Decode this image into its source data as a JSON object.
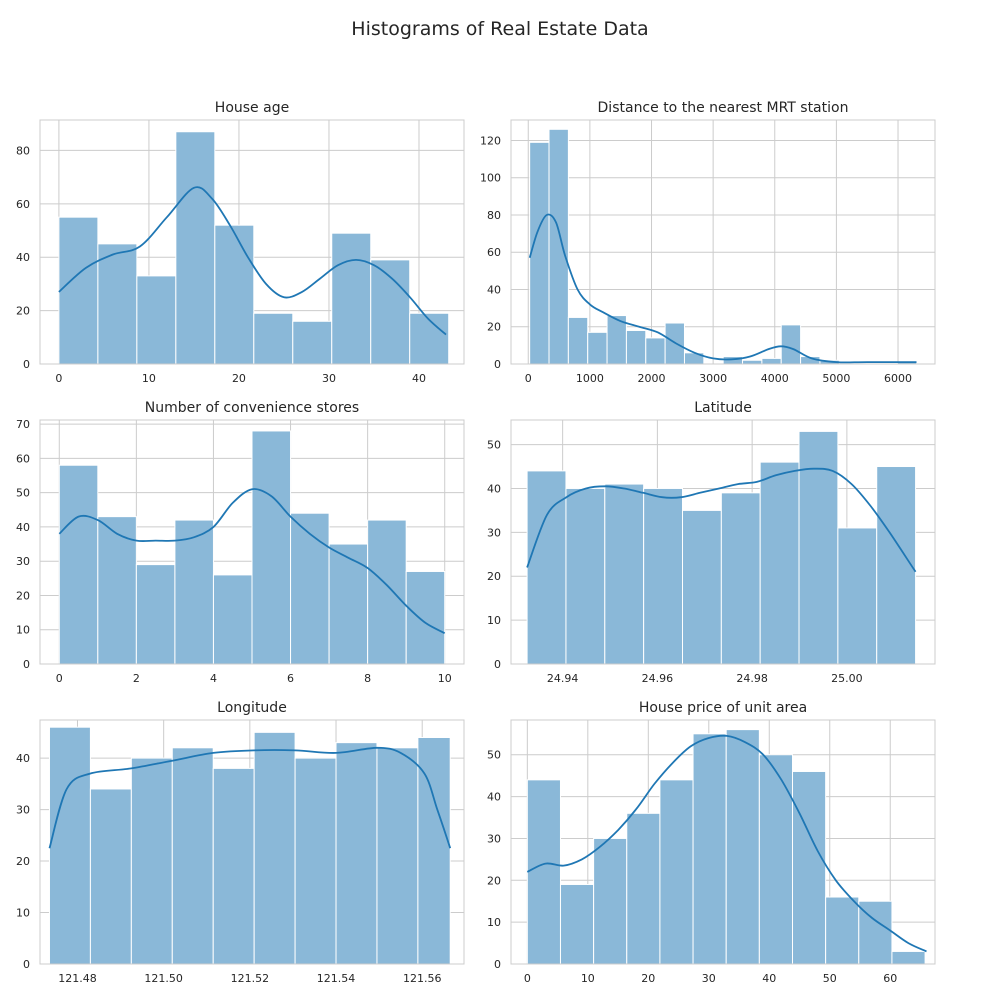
{
  "figure": {
    "title": "Histograms of Real Estate Data",
    "bar_color": "#8ab8d8",
    "bar_edge": "#ffffff",
    "kde_color": "#1f77b4",
    "grid_color": "#cccccc",
    "frame_color": "#cccccc",
    "background": "#ffffff"
  },
  "chart_data": [
    {
      "type": "bar",
      "subtype": "histogram_with_kde",
      "title": "House age",
      "xlabel": "",
      "ylabel": "",
      "xlim": [
        -2.1,
        45
      ],
      "ylim": [
        0,
        91.4
      ],
      "xticks": [
        0,
        10,
        20,
        30,
        40
      ],
      "yticks": [
        0,
        20,
        40,
        60,
        80
      ],
      "bin_edges": [
        0,
        4.33,
        8.66,
        12.99,
        17.32,
        21.65,
        25.98,
        30.31,
        34.64,
        38.97,
        43.3
      ],
      "counts": [
        55,
        45,
        33,
        87,
        52,
        19,
        16,
        49,
        39,
        19
      ],
      "kde": [
        [
          0,
          27
        ],
        [
          3,
          36
        ],
        [
          6,
          41
        ],
        [
          9,
          44
        ],
        [
          12,
          55
        ],
        [
          15,
          66
        ],
        [
          17,
          62
        ],
        [
          19,
          52
        ],
        [
          21,
          40
        ],
        [
          23,
          30
        ],
        [
          25,
          25
        ],
        [
          27,
          27
        ],
        [
          29,
          32
        ],
        [
          31,
          37
        ],
        [
          33,
          39
        ],
        [
          35,
          37
        ],
        [
          37,
          32
        ],
        [
          39,
          25
        ],
        [
          41,
          17
        ],
        [
          43,
          11
        ]
      ]
    },
    {
      "type": "bar",
      "subtype": "histogram_with_kde",
      "title": "Distance to the nearest MRT station",
      "xlabel": "",
      "ylabel": "",
      "xlim": [
        -280,
        6600
      ],
      "ylim": [
        0,
        131
      ],
      "xticks": [
        0,
        1000,
        2000,
        3000,
        4000,
        5000,
        6000
      ],
      "yticks": [
        0,
        20,
        40,
        60,
        80,
        100,
        120
      ],
      "bin_edges": [
        23,
        337,
        651,
        965,
        1279,
        1593,
        1907,
        2221,
        2535,
        2849,
        3163,
        3477,
        3791,
        4105,
        4419,
        4733,
        5047,
        5361,
        5675,
        5989,
        6303
      ],
      "counts": [
        119,
        126,
        25,
        17,
        26,
        18,
        14,
        22,
        6,
        0,
        4,
        2,
        3,
        21,
        4,
        2,
        0,
        0,
        0,
        1
      ],
      "kde": [
        [
          23,
          57
        ],
        [
          150,
          71
        ],
        [
          300,
          80
        ],
        [
          450,
          76
        ],
        [
          600,
          58
        ],
        [
          800,
          40
        ],
        [
          1000,
          32
        ],
        [
          1200,
          28
        ],
        [
          1500,
          23
        ],
        [
          1800,
          20
        ],
        [
          2100,
          17
        ],
        [
          2400,
          11
        ],
        [
          2700,
          6
        ],
        [
          3000,
          3
        ],
        [
          3300,
          2.5
        ],
        [
          3600,
          4
        ],
        [
          3900,
          8
        ],
        [
          4100,
          9.5
        ],
        [
          4300,
          8
        ],
        [
          4600,
          3
        ],
        [
          5000,
          1
        ],
        [
          5500,
          1
        ],
        [
          6300,
          1
        ]
      ]
    },
    {
      "type": "bar",
      "subtype": "histogram_with_kde",
      "title": "Number of convenience stores",
      "xlabel": "",
      "ylabel": "",
      "xlim": [
        -0.5,
        10.5
      ],
      "ylim": [
        0,
        71.2
      ],
      "xticks": [
        0,
        2,
        4,
        6,
        8,
        10
      ],
      "yticks": [
        0,
        10,
        20,
        30,
        40,
        50,
        60,
        70
      ],
      "bin_edges": [
        0,
        1,
        2,
        3,
        4,
        5,
        6,
        7,
        8,
        9,
        10
      ],
      "counts": [
        58,
        43,
        29,
        42,
        26,
        68,
        44,
        35,
        42,
        27
      ],
      "kde": [
        [
          0,
          38
        ],
        [
          0.5,
          43
        ],
        [
          1,
          42
        ],
        [
          1.5,
          38
        ],
        [
          2,
          36
        ],
        [
          2.5,
          36
        ],
        [
          3,
          36
        ],
        [
          3.5,
          37
        ],
        [
          4,
          40
        ],
        [
          4.5,
          47
        ],
        [
          5,
          51
        ],
        [
          5.5,
          49
        ],
        [
          6,
          43
        ],
        [
          6.5,
          38
        ],
        [
          7,
          34
        ],
        [
          7.5,
          31
        ],
        [
          8,
          28
        ],
        [
          8.5,
          23
        ],
        [
          9,
          17
        ],
        [
          9.5,
          12
        ],
        [
          10,
          9
        ]
      ]
    },
    {
      "type": "bar",
      "subtype": "histogram_with_kde",
      "title": "Latitude",
      "xlabel": "",
      "ylabel": "",
      "xlim": [
        24.9291,
        25.0186
      ],
      "ylim": [
        0,
        55.6
      ],
      "xticks": [
        24.94,
        24.96,
        24.98,
        25.0
      ],
      "yticks": [
        0,
        10,
        20,
        30,
        40,
        50
      ],
      "bin_edges": [
        24.9325,
        24.9407,
        24.9489,
        24.9571,
        24.9653,
        24.9735,
        24.9817,
        24.9899,
        24.9981,
        25.0063,
        25.0145
      ],
      "counts": [
        44,
        40,
        41,
        40,
        35,
        39,
        46,
        53,
        31,
        45
      ],
      "kde": [
        [
          24.9325,
          22
        ],
        [
          24.9367,
          34
        ],
        [
          24.9408,
          38
        ],
        [
          24.9449,
          40
        ],
        [
          24.949,
          40.5
        ],
        [
          24.953,
          40
        ],
        [
          24.957,
          39
        ],
        [
          24.961,
          38
        ],
        [
          24.965,
          38
        ],
        [
          24.969,
          39
        ],
        [
          24.973,
          40
        ],
        [
          24.977,
          41
        ],
        [
          24.981,
          41.5
        ],
        [
          24.985,
          43
        ],
        [
          24.989,
          44
        ],
        [
          24.993,
          44.5
        ],
        [
          24.997,
          44
        ],
        [
          25.001,
          41
        ],
        [
          25.005,
          36
        ],
        [
          25.009,
          30
        ],
        [
          25.0145,
          21
        ]
      ]
    },
    {
      "type": "bar",
      "subtype": "histogram_with_kde",
      "title": "Longitude",
      "xlabel": "",
      "ylabel": "",
      "xlim": [
        121.4713,
        121.5697
      ],
      "ylim": [
        0,
        47.4
      ],
      "xticks": [
        121.48,
        121.5,
        121.52,
        121.54,
        121.56
      ],
      "yticks": [
        0,
        10,
        20,
        30,
        40
      ],
      "bin_edges": [
        121.4735,
        121.483,
        121.4925,
        121.502,
        121.5115,
        121.521,
        121.5305,
        121.54,
        121.5495,
        121.559,
        121.5665
      ],
      "counts": [
        46,
        34,
        40,
        42,
        38,
        45,
        40,
        43,
        42,
        44
      ],
      "kde": [
        [
          121.4735,
          22.5
        ],
        [
          121.4775,
          34
        ],
        [
          121.483,
          37
        ],
        [
          121.4925,
          38
        ],
        [
          121.502,
          39.5
        ],
        [
          121.5115,
          41
        ],
        [
          121.521,
          41.5
        ],
        [
          121.5305,
          41.5
        ],
        [
          121.54,
          41
        ],
        [
          121.5495,
          42
        ],
        [
          121.555,
          41
        ],
        [
          121.5605,
          37
        ],
        [
          121.5635,
          30
        ],
        [
          121.5665,
          22.5
        ]
      ]
    },
    {
      "type": "bar",
      "subtype": "histogram_with_kde",
      "title": "House price of unit area",
      "xlabel": "",
      "ylabel": "",
      "xlim": [
        -2.7,
        67.4
      ],
      "ylim": [
        0,
        58.3
      ],
      "xticks": [
        0,
        10,
        20,
        30,
        40,
        50,
        60
      ],
      "yticks": [
        0,
        10,
        20,
        30,
        40,
        50
      ],
      "bin_edges": [
        0,
        5.48,
        10.96,
        16.44,
        21.92,
        27.4,
        32.88,
        38.36,
        43.84,
        49.32,
        54.8,
        60.28,
        65.76
      ],
      "counts": [
        44,
        19,
        30,
        36,
        44,
        55,
        56,
        50,
        46,
        16,
        15,
        3
      ],
      "kde": [
        [
          0,
          22
        ],
        [
          3,
          24
        ],
        [
          6,
          23.5
        ],
        [
          9,
          25
        ],
        [
          12,
          28
        ],
        [
          15,
          32
        ],
        [
          18,
          37
        ],
        [
          21,
          43
        ],
        [
          24,
          48
        ],
        [
          27,
          52
        ],
        [
          30,
          54
        ],
        [
          33,
          54.5
        ],
        [
          36,
          53
        ],
        [
          39,
          50
        ],
        [
          42,
          44
        ],
        [
          45,
          36
        ],
        [
          48,
          27
        ],
        [
          51,
          20
        ],
        [
          54,
          15
        ],
        [
          57,
          11
        ],
        [
          60,
          8
        ],
        [
          63,
          5
        ],
        [
          66,
          3
        ]
      ]
    }
  ]
}
